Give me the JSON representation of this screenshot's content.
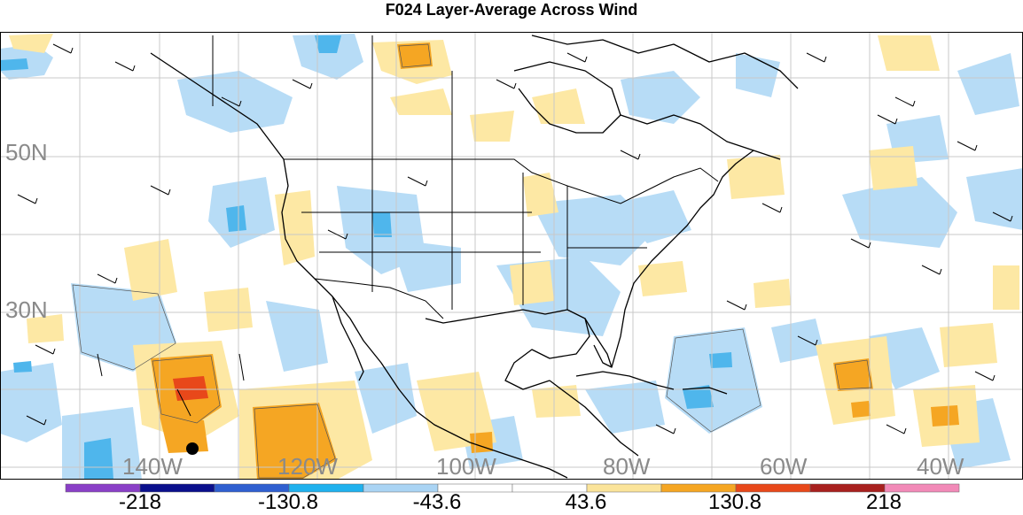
{
  "title": "F024 Layer-Average Across Wind",
  "map": {
    "lat_labels": [
      "50N",
      "30N"
    ],
    "lon_labels": [
      "140W",
      "120W",
      "100W",
      "80W",
      "60W",
      "40W"
    ],
    "land_color": "#ffffff",
    "grid_color": "#c8c8c8"
  },
  "colorbar": {
    "colors": [
      "#8a3fc7",
      "#0a0f8c",
      "#2f5fd0",
      "#1fb1ee",
      "#aad4f4",
      "#ffffff",
      "#ffffff",
      "#fbe49a",
      "#f5a623",
      "#e8481a",
      "#a8201e",
      "#f28ab8"
    ],
    "labels": [
      "-218",
      "-130.8",
      "-43.6",
      "43.6",
      "130.8",
      "218"
    ]
  },
  "palette": {
    "light_blue": "#b7dcf6",
    "mid_blue": "#4fb6ec",
    "light_yellow": "#fde8a4",
    "orange": "#f5a623",
    "red_orange": "#e8481a"
  }
}
